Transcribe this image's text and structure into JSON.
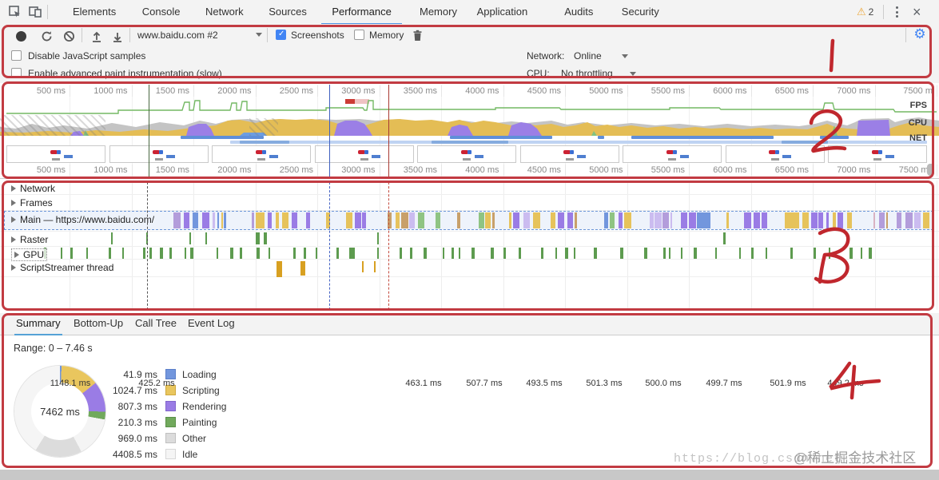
{
  "devtools": {
    "tabs": [
      "Elements",
      "Console",
      "Network",
      "Sources",
      "Performance",
      "Memory",
      "Application",
      "Audits",
      "Security"
    ],
    "active_tab": "Performance",
    "warning_count": "2"
  },
  "icons": {
    "warning": "⚠",
    "close": "×",
    "gear": "⚙"
  },
  "toolbar": {
    "page_select_value": "www.baidu.com #2",
    "screenshots_label": "Screenshots",
    "memory_label": "Memory"
  },
  "settings": {
    "disable_js_label": "Disable JavaScript samples",
    "paint_label": "Enable advanced paint instrumentation (slow)",
    "network_label": "Network:",
    "network_value": "Online",
    "cpu_label": "CPU:",
    "cpu_value": "No throttling"
  },
  "overview": {
    "ruler_top": [
      "500 ms",
      "1000 ms",
      "1500 ms",
      "2000 ms",
      "2500 ms",
      "3000 ms",
      "3500 ms",
      "4000 ms",
      "4500 ms",
      "5000 ms",
      "5500 ms",
      "6000 ms",
      "6500 ms",
      "7000 ms",
      "7500 m"
    ],
    "ruler_bottom": [
      "500 ms",
      "1000 ms",
      "1500 ms",
      "2000 ms",
      "2500 ms",
      "3000 ms",
      "3500 ms",
      "4000 ms",
      "4500 ms",
      "5000 ms",
      "5500 ms",
      "6000 ms",
      "6500 ms",
      "7000 ms",
      "7500 ms"
    ],
    "fps_label": "FPS",
    "cpu_label": "CPU",
    "net_label": "NET"
  },
  "tracks": {
    "network_label": "Network",
    "network_ellipsis": "...",
    "frames_label": "Frames",
    "frame_times": [
      "1148.1 ms",
      "425.2 ms",
      "463.1 ms",
      "507.7 ms",
      "493.5 ms",
      "501.3 ms",
      "500.0 ms",
      "499.7 ms",
      "501.9 ms",
      "449.2 ms"
    ],
    "main_label": "Main — https://www.baidu.com/",
    "raster_label": "Raster",
    "gpu_label": "GPU",
    "script_streamer_label": "ScriptStreamer thread"
  },
  "summary": {
    "tabs": [
      "Summary",
      "Bottom-Up",
      "Call Tree",
      "Event Log"
    ],
    "active_tab": "Summary",
    "range_text": "Range: 0 – 7.46 s",
    "donut_center": "7462 ms",
    "legend": [
      {
        "value": "41.9 ms",
        "label": "Loading",
        "color": "#7296dd",
        "border": "#5b7fc9"
      },
      {
        "value": "1024.7 ms",
        "label": "Scripting",
        "color": "#e9c65e",
        "border": "#cfa83e"
      },
      {
        "value": "807.3 ms",
        "label": "Rendering",
        "color": "#9a7ce5",
        "border": "#8266cc"
      },
      {
        "value": "210.3 ms",
        "label": "Painting",
        "color": "#71a95c",
        "border": "#5a9048"
      },
      {
        "value": "969.0 ms",
        "label": "Other",
        "color": "#dcdcdc",
        "border": "#c0c0c0"
      },
      {
        "value": "4408.5 ms",
        "label": "Idle",
        "color": "#f5f5f5",
        "border": "#d8d8d8"
      }
    ]
  },
  "annotations": [
    "1",
    "2",
    "3",
    "4"
  ],
  "watermark": {
    "url_text": "https://blog.csdn.net",
    "credit": "@稀土掘金技术社区"
  }
}
